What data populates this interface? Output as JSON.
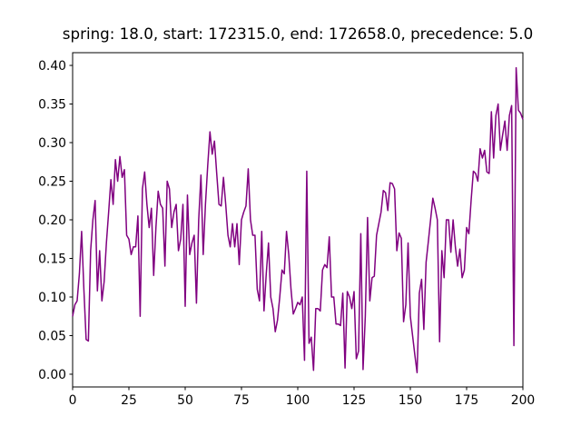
{
  "chart_data": {
    "type": "line",
    "title": "spring: 18.0, start: 172315.0, end: 172658.0, precedence: 5.0",
    "x": [
      0,
      1,
      2,
      3,
      4,
      5,
      6,
      7,
      8,
      9,
      10,
      11,
      12,
      13,
      14,
      15,
      16,
      17,
      18,
      19,
      20,
      21,
      22,
      23,
      24,
      25,
      26,
      27,
      28,
      29,
      30,
      31,
      32,
      33,
      34,
      35,
      36,
      37,
      38,
      39,
      40,
      41,
      42,
      43,
      44,
      45,
      46,
      47,
      48,
      49,
      50,
      51,
      52,
      53,
      54,
      55,
      56,
      57,
      58,
      59,
      60,
      61,
      62,
      63,
      64,
      65,
      66,
      67,
      68,
      69,
      70,
      71,
      72,
      73,
      74,
      75,
      76,
      77,
      78,
      79,
      80,
      81,
      82,
      83,
      84,
      85,
      86,
      87,
      88,
      89,
      90,
      91,
      92,
      93,
      94,
      95,
      96,
      97,
      98,
      99,
      100,
      101,
      102,
      103,
      104,
      105,
      106,
      107,
      108,
      109,
      110,
      111,
      112,
      113,
      114,
      115,
      116,
      117,
      118,
      119,
      120,
      121,
      122,
      123,
      124,
      125,
      126,
      127,
      128,
      129,
      130,
      131,
      132,
      133,
      134,
      135,
      136,
      137,
      138,
      139,
      140,
      141,
      142,
      143,
      144,
      145,
      146,
      147,
      148,
      149,
      150,
      151,
      152,
      153,
      154,
      155,
      156,
      157,
      158,
      159,
      160,
      161,
      162,
      163,
      164,
      165,
      166,
      167,
      168,
      169,
      170,
      171,
      172,
      173,
      174,
      175,
      176,
      177,
      178,
      179,
      180,
      181,
      182,
      183,
      184,
      185,
      186,
      187,
      188,
      189,
      190,
      191,
      192,
      193,
      194,
      195,
      196,
      197,
      198,
      199,
      200
    ],
    "series": [
      {
        "color": "#800080",
        "values": [
          0.075,
          0.09,
          0.095,
          0.13,
          0.185,
          0.11,
          0.045,
          0.043,
          0.16,
          0.2,
          0.225,
          0.108,
          0.16,
          0.095,
          0.12,
          0.17,
          0.21,
          0.252,
          0.22,
          0.278,
          0.25,
          0.282,
          0.255,
          0.265,
          0.18,
          0.175,
          0.155,
          0.165,
          0.165,
          0.205,
          0.075,
          0.24,
          0.262,
          0.22,
          0.19,
          0.215,
          0.128,
          0.19,
          0.237,
          0.22,
          0.215,
          0.14,
          0.25,
          0.24,
          0.19,
          0.21,
          0.22,
          0.16,
          0.175,
          0.22,
          0.088,
          0.232,
          0.155,
          0.17,
          0.18,
          0.092,
          0.2,
          0.258,
          0.155,
          0.22,
          0.27,
          0.314,
          0.285,
          0.302,
          0.26,
          0.22,
          0.218,
          0.255,
          0.22,
          0.18,
          0.165,
          0.195,
          0.165,
          0.195,
          0.142,
          0.2,
          0.21,
          0.218,
          0.266,
          0.2,
          0.18,
          0.18,
          0.11,
          0.095,
          0.185,
          0.082,
          0.13,
          0.17,
          0.1,
          0.085,
          0.055,
          0.07,
          0.1,
          0.135,
          0.13,
          0.185,
          0.155,
          0.11,
          0.078,
          0.085,
          0.093,
          0.09,
          0.1,
          0.018,
          0.263,
          0.04,
          0.048,
          0.005,
          0.085,
          0.085,
          0.082,
          0.135,
          0.142,
          0.138,
          0.178,
          0.1,
          0.1,
          0.065,
          0.065,
          0.063,
          0.105,
          0.008,
          0.107,
          0.1,
          0.085,
          0.107,
          0.02,
          0.03,
          0.182,
          0.006,
          0.075,
          0.203,
          0.095,
          0.125,
          0.127,
          0.18,
          0.195,
          0.21,
          0.238,
          0.235,
          0.212,
          0.248,
          0.247,
          0.24,
          0.16,
          0.183,
          0.176,
          0.068,
          0.09,
          0.17,
          0.075,
          0.05,
          0.025,
          0.002,
          0.105,
          0.123,
          0.058,
          0.145,
          0.172,
          0.2,
          0.228,
          0.215,
          0.2,
          0.042,
          0.16,
          0.125,
          0.2,
          0.2,
          0.158,
          0.2,
          0.165,
          0.14,
          0.162,
          0.125,
          0.135,
          0.19,
          0.182,
          0.225,
          0.263,
          0.26,
          0.25,
          0.292,
          0.28,
          0.29,
          0.262,
          0.26,
          0.34,
          0.28,
          0.335,
          0.35,
          0.29,
          0.31,
          0.328,
          0.29,
          0.335,
          0.348,
          0.037,
          0.397,
          0.342,
          0.338,
          0.33
        ]
      }
    ],
    "xlim": [
      0,
      200
    ],
    "xticks": [
      0,
      25,
      50,
      75,
      100,
      125,
      150,
      175,
      200
    ],
    "ylim": [
      -0.0165,
      0.4165
    ],
    "yticks": [
      {
        "value": 0,
        "label": "0.00"
      },
      0.05,
      {
        "value": 0.1,
        "label": "0.10"
      },
      0.15,
      {
        "value": 0.2,
        "label": "0.20"
      },
      0.25,
      {
        "value": 0.3,
        "label": "0.30"
      },
      0.35,
      {
        "value": 0.4,
        "label": "0.40"
      }
    ],
    "grid": false
  }
}
